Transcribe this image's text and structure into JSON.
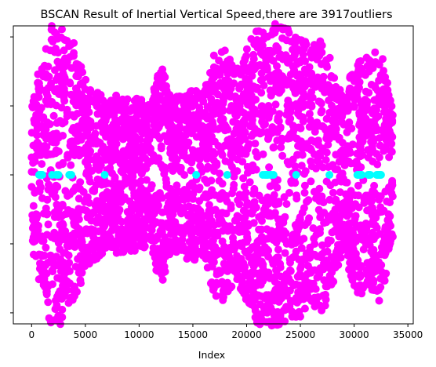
{
  "chart_data": {
    "type": "scatter",
    "title": "BSCAN Result of Inertial Vertical Speed,there are 3917outliers",
    "xlabel": "Index",
    "ylabel": "",
    "xlim": [
      -1700,
      35500
    ],
    "ylim": [
      -1.08,
      1.08
    ],
    "xticks": [
      0,
      5000,
      10000,
      15000,
      20000,
      25000,
      30000,
      35000
    ],
    "xtick_labels": [
      "0",
      "5000",
      "10000",
      "15000",
      "20000",
      "25000",
      "30000",
      "35000"
    ],
    "yticks": [
      -1.0,
      -0.5,
      0.0,
      0.5,
      1.0
    ],
    "ytick_labels": [
      "",
      "",
      "",
      "",
      ""
    ],
    "grid": false,
    "legend": "none",
    "colors": {
      "outlier": "#ff00ff",
      "cluster": "#00ffff",
      "axis": "#000000"
    },
    "series": [
      {
        "label": "outliers",
        "color": "#ff00ff",
        "count": 3917,
        "x_range": [
          0,
          33600
        ],
        "envelope_x": [
          0,
          500,
          1200,
          1700,
          2500,
          3500,
          4000,
          5000,
          6000,
          7000,
          8000,
          9000,
          10000,
          11000,
          12000,
          13000,
          14000,
          15000,
          16000,
          17000,
          18000,
          19000,
          20000,
          21000,
          22000,
          23000,
          24000,
          25000,
          26000,
          27000,
          28000,
          29000,
          30000,
          30500,
          31000,
          31500,
          32000,
          32500,
          33000,
          33600
        ],
        "envelope_y": [
          0.5,
          0.75,
          0.85,
          1.1,
          1.1,
          1.0,
          0.95,
          0.7,
          0.62,
          0.55,
          0.58,
          0.55,
          0.56,
          0.5,
          0.82,
          0.55,
          0.6,
          0.62,
          0.6,
          0.88,
          0.92,
          0.75,
          0.92,
          1.08,
          1.1,
          1.1,
          1.05,
          1.03,
          0.92,
          1.02,
          0.8,
          0.55,
          0.82,
          0.9,
          0.85,
          0.85,
          0.9,
          0.92,
          0.72,
          0.45
        ]
      },
      {
        "label": "cluster",
        "color": "#00ffff",
        "y": 0.0,
        "points_x": [
          700,
          800,
          900,
          1000,
          1900,
          2300,
          2500,
          3500,
          3700,
          6800,
          15300,
          18200,
          21500,
          21700,
          21800,
          21900,
          22000,
          22200,
          22300,
          22500,
          24600,
          27700,
          30300,
          30400,
          30500,
          30600,
          30700,
          31300,
          31400,
          31500,
          32100,
          32200,
          32300,
          32400,
          32500
        ]
      }
    ]
  }
}
